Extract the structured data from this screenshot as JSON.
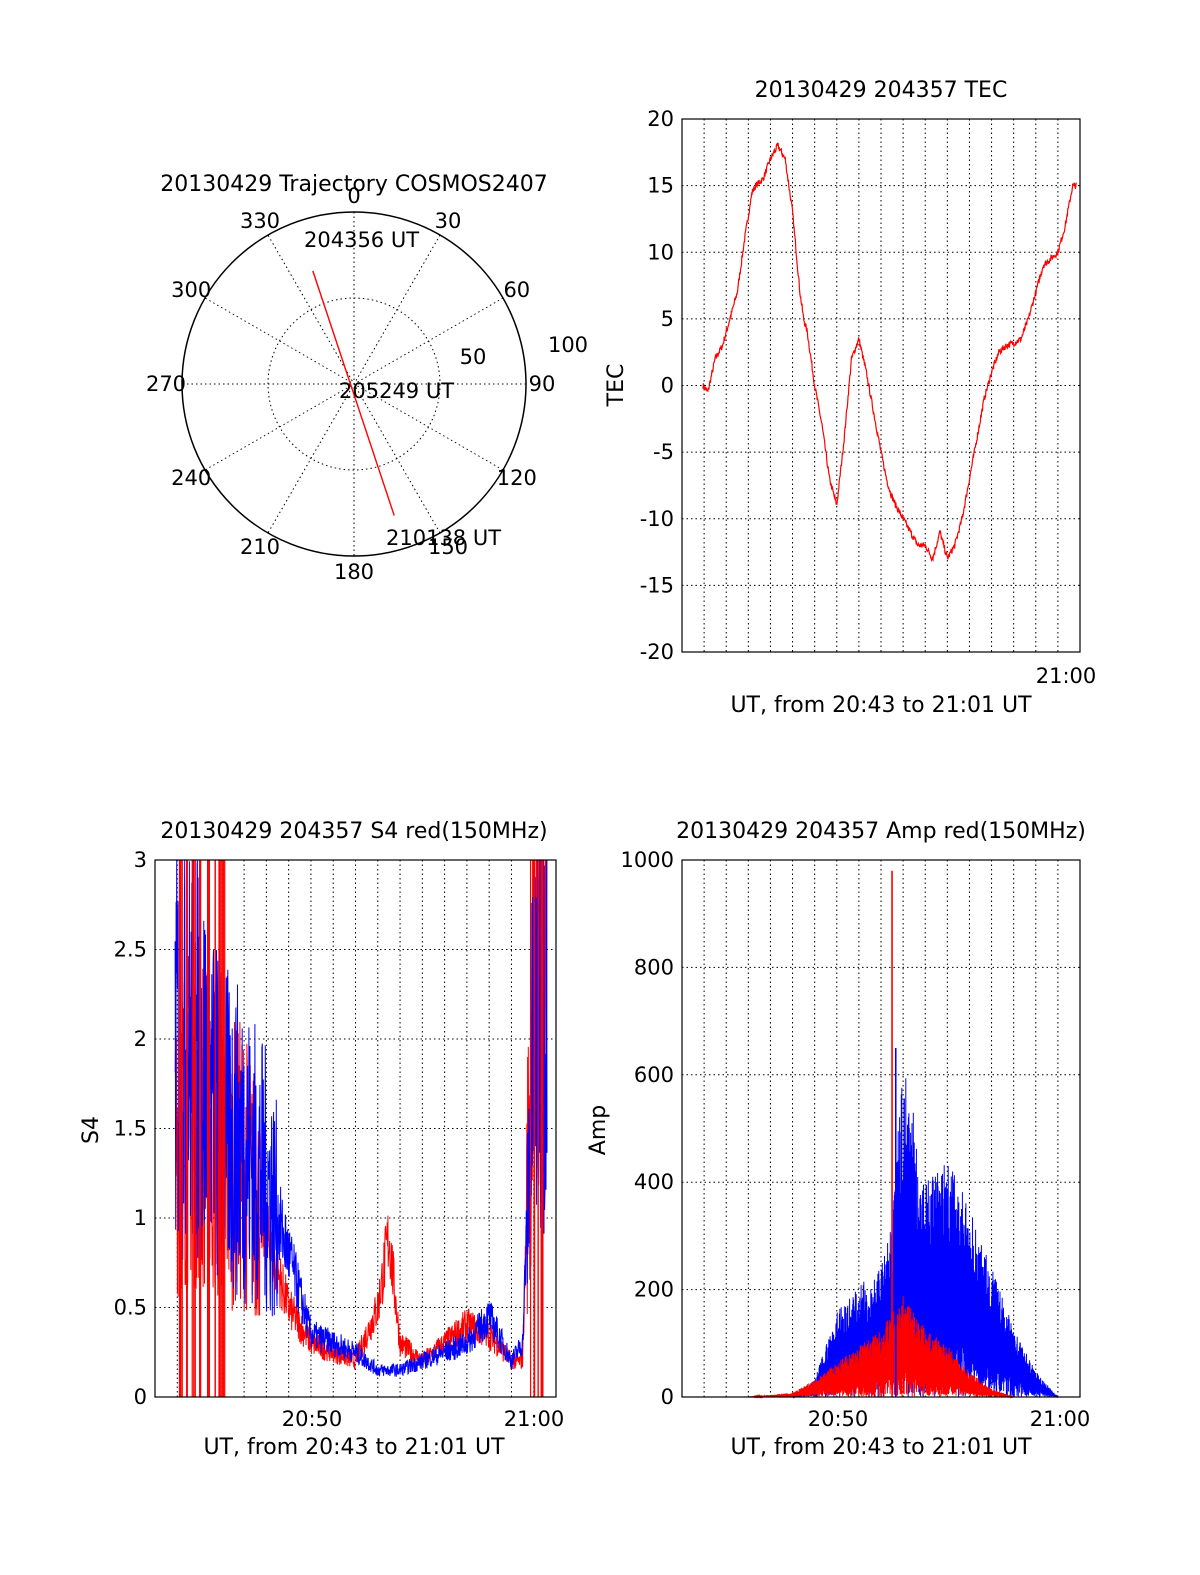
{
  "colors": {
    "red": "#ff0000",
    "blue": "#0000ff",
    "axis": "#000000",
    "background": "#ffffff"
  },
  "polar": {
    "title": "20130429 Trajectory COSMOS2407",
    "azimuth_labels": [
      "0",
      "30",
      "60",
      "90",
      "120",
      "150",
      "180",
      "210",
      "240",
      "270",
      "300",
      "330"
    ],
    "radial_labels": [
      "50",
      "100"
    ],
    "point_labels": {
      "start": "204356 UT",
      "middle": "205249 UT",
      "end": "210138 UT"
    }
  },
  "tec": {
    "title": "20130429 204357 TEC",
    "ylabel": "TEC",
    "xlabel": "UT, from 20:43 to 21:01 UT",
    "y_ticks": [
      "-20",
      "-15",
      "-10",
      "-5",
      "0",
      "5",
      "10",
      "15",
      "20"
    ],
    "x_tick": "21:00"
  },
  "s4": {
    "title": "20130429 204357 S4 red(150MHz)",
    "ylabel": "S4",
    "xlabel": "UT, from 20:43 to 21:01 UT",
    "y_ticks": [
      "0",
      "0.5",
      "1",
      "1.5",
      "2",
      "2.5",
      "3"
    ],
    "x_ticks": [
      "20:50",
      "21:00"
    ]
  },
  "amp": {
    "title": "20130429 204357 Amp red(150MHz)",
    "ylabel": "Amp",
    "xlabel": "UT, from 20:43 to 21:01 UT",
    "y_ticks": [
      "0",
      "200",
      "400",
      "600",
      "800",
      "1000"
    ],
    "x_ticks": [
      "20:50",
      "21:00"
    ]
  },
  "chart_data": [
    {
      "type": "scatter",
      "subtype": "polar-trajectory",
      "title": "20130429 Trajectory COSMOS2407",
      "azimuth_deg": [
        0,
        30,
        60,
        90,
        120,
        150,
        180,
        210,
        240,
        270,
        300,
        330
      ],
      "radial_rings": [
        50,
        100
      ],
      "series": [
        {
          "color": "#ff0000",
          "points": [
            {
              "label": "204356 UT",
              "az": 340,
              "r": 70
            },
            {
              "label": "205249 UT",
              "az": 90,
              "r": 0
            },
            {
              "label": "210138 UT",
              "az": 163,
              "r": 80
            }
          ]
        }
      ]
    },
    {
      "type": "line",
      "title": "20130429 204357 TEC",
      "xlabel": "UT, from 20:43 to 21:01 UT",
      "ylabel": "TEC",
      "xlim": [
        "20:43",
        "21:01"
      ],
      "ylim": [
        -20,
        20
      ],
      "grid": true,
      "series": [
        {
          "color": "#ff0000",
          "x": [
            "20:43:57",
            "20:44:10",
            "20:44:30",
            "20:44:50",
            "20:45:10",
            "20:45:30",
            "20:45:50",
            "20:46:10",
            "20:46:20",
            "20:46:40",
            "20:47:00",
            "20:47:20",
            "20:47:40",
            "20:48:00",
            "20:48:20",
            "20:48:30",
            "20:48:40",
            "20:49:00",
            "20:49:20",
            "20:49:40",
            "20:50:00",
            "20:50:20",
            "20:50:40",
            "20:51:00",
            "20:51:20",
            "20:51:40",
            "20:52:00",
            "20:52:15",
            "20:52:25",
            "20:52:40",
            "20:53:00",
            "20:53:20",
            "20:53:40",
            "20:54:00",
            "20:54:20",
            "20:54:40",
            "20:55:00",
            "20:55:20",
            "20:55:40",
            "20:56:00",
            "20:56:20",
            "20:56:40",
            "20:57:00",
            "20:57:20",
            "20:57:40",
            "20:58:00",
            "20:58:20",
            "20:58:40",
            "20:59:00",
            "20:59:20",
            "20:59:40",
            "21:00:00",
            "21:00:20",
            "21:00:40",
            "21:00:50"
          ],
          "y": [
            0,
            -0.5,
            2,
            3,
            5,
            7,
            11,
            14.5,
            15,
            15.5,
            17,
            18,
            17,
            13,
            7,
            5,
            4,
            0,
            -3,
            -7,
            -9,
            -4,
            2,
            3.5,
            1,
            -2,
            -5,
            -7,
            -8,
            -9,
            -10,
            -11,
            -12,
            -12,
            -13,
            -11,
            -13,
            -12,
            -10,
            -7,
            -4,
            -1,
            1,
            2.5,
            3,
            3.2,
            3.5,
            5,
            7,
            9,
            9.5,
            10,
            12,
            15,
            15
          ]
        }
      ]
    },
    {
      "type": "line",
      "title": "20130429 204357 S4 red(150MHz)",
      "xlabel": "UT, from 20:43 to 21:01 UT",
      "ylabel": "S4",
      "xlim": [
        "20:43",
        "21:01"
      ],
      "ylim": [
        0,
        3
      ],
      "grid": true,
      "series": [
        {
          "color": "#ff0000",
          "x": [
            "20:44",
            "20:45",
            "20:46",
            "20:47",
            "20:48",
            "20:49",
            "20:50",
            "20:51",
            "20:52",
            "20:53",
            "20:53:30",
            "20:54",
            "20:55",
            "20:56",
            "20:57",
            "20:58",
            "20:59",
            "20:59:30",
            "21:00",
            "21:00:30"
          ],
          "y": [
            1.5,
            1.6,
            1.3,
            1.3,
            0.9,
            0.5,
            0.3,
            0.25,
            0.2,
            0.5,
            0.9,
            0.3,
            0.2,
            0.3,
            0.4,
            0.35,
            0.2,
            0.2,
            2.5,
            3
          ]
        },
        {
          "color": "#0000ff",
          "x": [
            "20:44",
            "20:45",
            "20:46",
            "20:47",
            "20:48",
            "20:49",
            "20:50",
            "20:51",
            "20:52",
            "20:53",
            "20:54",
            "20:55",
            "20:56",
            "20:57",
            "20:58",
            "20:59",
            "20:59:30",
            "21:00",
            "21:00:30"
          ],
          "y": [
            2.0,
            1.9,
            1.5,
            1.4,
            1.2,
            0.8,
            0.35,
            0.3,
            0.25,
            0.15,
            0.15,
            0.2,
            0.25,
            0.3,
            0.45,
            0.2,
            0.3,
            2.0,
            2.5
          ]
        }
      ]
    },
    {
      "type": "line",
      "title": "20130429 204357 Amp red(150MHz)",
      "xlabel": "UT, from 20:43 to 21:01 UT",
      "ylabel": "Amp",
      "xlim": [
        "20:43",
        "21:01"
      ],
      "ylim": [
        0,
        1000
      ],
      "grid": true,
      "series": [
        {
          "color": "#ff0000",
          "x": [
            "20:44",
            "20:46",
            "20:48",
            "20:49",
            "20:50",
            "20:51",
            "20:52",
            "20:52:30",
            "20:53",
            "20:54",
            "20:55",
            "20:56",
            "20:57",
            "20:58",
            "20:59"
          ],
          "y": [
            0,
            0,
            5,
            20,
            40,
            60,
            80,
            100,
            120,
            80,
            60,
            30,
            10,
            0,
            0
          ]
        },
        {
          "color": "#0000ff",
          "x": [
            "20:44",
            "20:47",
            "20:48",
            "20:49",
            "20:50",
            "20:51",
            "20:52",
            "20:52:30",
            "20:53",
            "20:54",
            "20:55",
            "20:56",
            "20:57",
            "20:58",
            "20:59",
            "21:00",
            "21:01"
          ],
          "y": [
            0,
            0,
            0,
            20,
            100,
            130,
            150,
            200,
            400,
            250,
            280,
            220,
            150,
            80,
            30,
            0,
            0
          ]
        }
      ],
      "peaks": [
        {
          "color": "#ff0000",
          "x": "20:52:30",
          "y": 980
        },
        {
          "color": "#0000ff",
          "x": "20:52:40",
          "y": 650
        }
      ]
    }
  ]
}
